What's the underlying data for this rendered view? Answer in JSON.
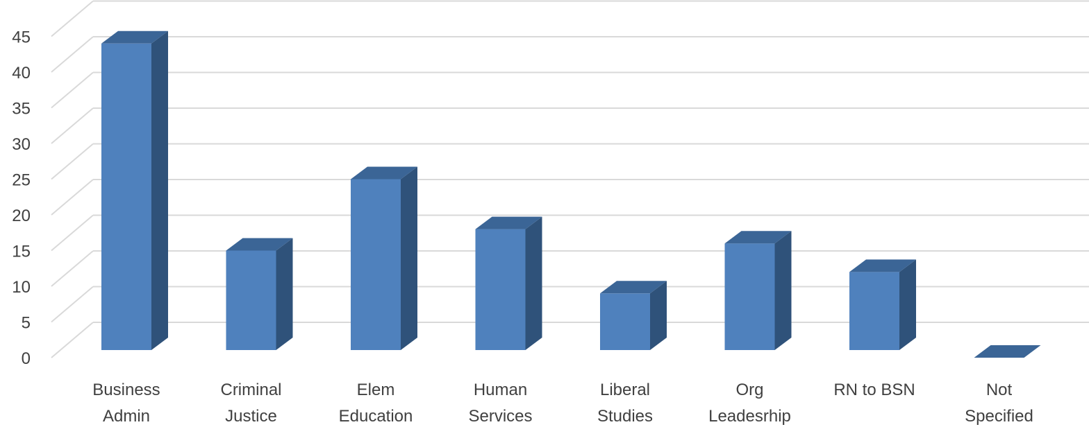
{
  "chart_data": {
    "type": "bar",
    "title": "",
    "xlabel": "",
    "ylabel": "",
    "ylim": [
      0,
      45
    ],
    "yticks": [
      0,
      5,
      10,
      15,
      20,
      25,
      30,
      35,
      40,
      45
    ],
    "grid": true,
    "legend": "none",
    "style": "3d-column",
    "categories": [
      [
        "Business",
        "Admin"
      ],
      [
        "Criminal",
        "Justice"
      ],
      [
        "Elem",
        "Education"
      ],
      [
        "Human",
        "Services"
      ],
      [
        "Liberal",
        "Studies"
      ],
      [
        "Org",
        "Leadesrhip"
      ],
      [
        "RN to BSN"
      ],
      [
        "Not",
        "Specified"
      ]
    ],
    "values": [
      44,
      15,
      25,
      18,
      9,
      16,
      12,
      0
    ],
    "colors": {
      "front": "#4f81bd",
      "side": "#2f527a",
      "top": "#3b6596",
      "grid": "#d9d9d9",
      "text": "#404040"
    }
  }
}
